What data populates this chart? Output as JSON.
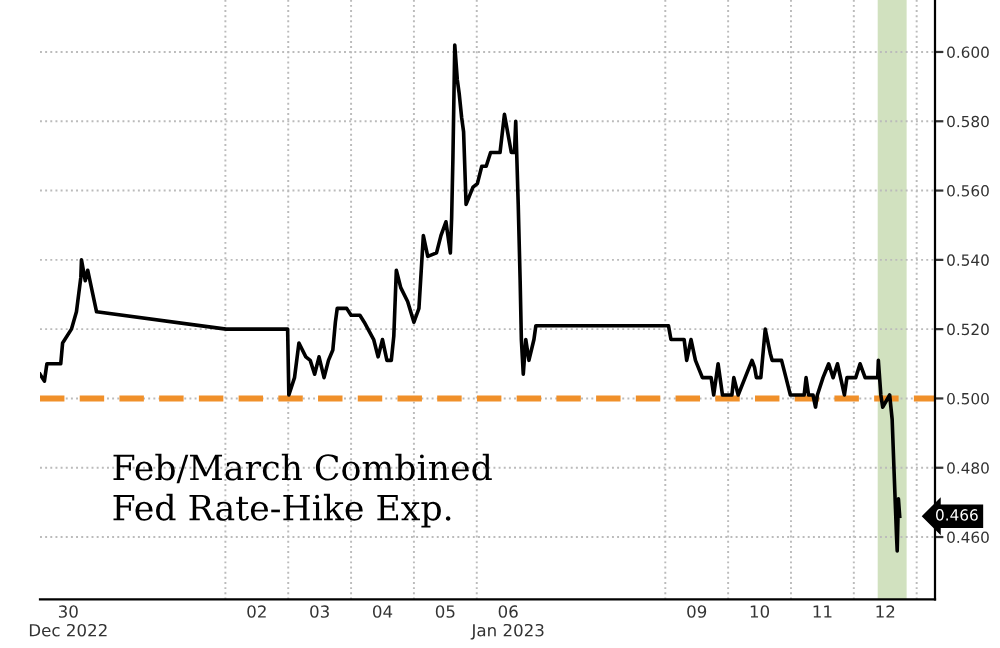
{
  "chart_data": {
    "type": "line",
    "annotations": [
      "Feb/March Combined\nFed Rate-Hike Exp.",
      "0.466"
    ],
    "xlim": [
      "2022-12-30T01:12",
      "2023-01-13T07:00"
    ],
    "xticks": [
      {
        "value": "2022-12-30T12:00",
        "label": "30\nDec 2022"
      },
      {
        "value": "2023-01-02T12:00",
        "label": "02"
      },
      {
        "value": "2023-01-03T12:00",
        "label": "03"
      },
      {
        "value": "2023-01-04T12:00",
        "label": "04"
      },
      {
        "value": "2023-01-05T12:00",
        "label": "05"
      },
      {
        "value": "2023-01-06T12:00",
        "label": "06\nJan 2023"
      },
      {
        "value": "2023-01-09T12:00",
        "label": "09"
      },
      {
        "value": "2023-01-10T12:00",
        "label": "10"
      },
      {
        "value": "2023-01-11T12:00",
        "label": "11"
      },
      {
        "value": "2023-01-12T12:00",
        "label": "12"
      },
      {
        "value": "2023-01-02",
        "label": null
      },
      {
        "value": "2023-01-03",
        "label": null
      },
      {
        "value": "2023-01-04",
        "label": null
      },
      {
        "value": "2023-01-05",
        "label": null
      },
      {
        "value": "2023-01-06",
        "label": null
      },
      {
        "value": "2023-01-09",
        "label": null
      },
      {
        "value": "2023-01-10",
        "label": null
      },
      {
        "value": "2023-01-11",
        "label": null
      },
      {
        "value": "2023-01-12",
        "label": null
      },
      {
        "value": "2023-01-13",
        "label": null
      }
    ],
    "ylim": [
      0.442,
      0.615
    ],
    "yticks": [
      {
        "value": 0.46,
        "label": "0.460"
      },
      {
        "value": 0.48,
        "label": "0.480"
      },
      {
        "value": 0.5,
        "label": "0.500"
      },
      {
        "value": 0.52,
        "label": "0.520"
      },
      {
        "value": 0.54,
        "label": "0.540"
      },
      {
        "value": 0.56,
        "label": "0.560"
      },
      {
        "value": 0.58,
        "label": "0.580"
      },
      {
        "value": 0.6,
        "label": "0.600"
      }
    ],
    "grid": true,
    "ref_lines": [
      {
        "axis": "y",
        "value": 0.5,
        "color": "#f0902a",
        "line_style": "dashed"
      }
    ],
    "bands": [
      {
        "axis": "x",
        "from": "2023-01-12T09:07",
        "to": "2023-01-12T20:10",
        "color": "#c9dcb4"
      }
    ],
    "series": [
      {
        "color": "#000000",
        "x": [
          "2022-12-30T01:12",
          "2022-12-30T02:53",
          "2022-12-30T03:50",
          "2022-12-30T09:07",
          "2022-12-30T09:50",
          "2022-12-30T13:12",
          "2022-12-30T15:07",
          "2022-12-30T16:48",
          "2022-12-30T17:02",
          "2022-12-30T18:29",
          "2022-12-30T19:26",
          "2022-12-30T21:07",
          "2022-12-30T22:48",
          "2023-01-02T00:14",
          "2023-01-02T23:46",
          "2023-01-03T00:14",
          "2023-01-03T02:24",
          "2023-01-03T04:05",
          "2023-01-03T06:43",
          "2023-01-03T08:24",
          "2023-01-03T10:05",
          "2023-01-03T11:46",
          "2023-01-03T13:41",
          "2023-01-03T15:22",
          "2023-01-03T17:02",
          "2023-01-03T18:00",
          "2023-01-03T18:43",
          "2023-01-03T22:19",
          "2023-01-04T00:00",
          "2023-01-04T03:22",
          "2023-01-04T05:02",
          "2023-01-04T08:38",
          "2023-01-04T10:19",
          "2023-01-04T12:00",
          "2023-01-04T13:41",
          "2023-01-04T15:22",
          "2023-01-04T16:19",
          "2023-01-04T17:17",
          "2023-01-04T18:58",
          "2023-01-04T21:36",
          "2023-01-05T00:00",
          "2023-01-05T01:55",
          "2023-01-05T03:36",
          "2023-01-05T05:17",
          "2023-01-05T08:38",
          "2023-01-05T10:19",
          "2023-01-05T12:14",
          "2023-01-05T13:55",
          "2023-01-05T14:24",
          "2023-01-05T14:53",
          "2023-01-05T15:36",
          "2023-01-05T16:34",
          "2023-01-05T17:17",
          "2023-01-05T18:14",
          "2023-01-05T18:58",
          "2023-01-05T19:55",
          "2023-01-05T22:34",
          "2023-01-06T00:14",
          "2023-01-06T01:55",
          "2023-01-06T03:36",
          "2023-01-06T05:17",
          "2023-01-06T08:53",
          "2023-01-06T10:34",
          "2023-01-06T13:12",
          "2023-01-06T14:24",
          "2023-01-06T14:53",
          "2023-01-06T15:50",
          "2023-01-06T16:34",
          "2023-01-06T17:02",
          "2023-01-06T17:46",
          "2023-01-06T18:43",
          "2023-01-06T19:55",
          "2023-01-06T21:50",
          "2023-01-06T22:34",
          "2023-01-09T01:12",
          "2023-01-09T02:10",
          "2023-01-09T07:12",
          "2023-01-09T08:10",
          "2023-01-09T09:50",
          "2023-01-09T11:31",
          "2023-01-09T14:10",
          "2023-01-09T17:31",
          "2023-01-09T18:29",
          "2023-01-09T20:10",
          "2023-01-09T21:50",
          "2023-01-10T01:26",
          "2023-01-10T02:10",
          "2023-01-10T03:50",
          "2023-01-10T06:29",
          "2023-01-10T09:07",
          "2023-01-10T10:05",
          "2023-01-10T10:48",
          "2023-01-10T12:29",
          "2023-01-10T14:10",
          "2023-01-10T16:05",
          "2023-01-10T16:48",
          "2023-01-10T20:24",
          "2023-01-10T22:05",
          "2023-01-10T23:46",
          "2023-01-11T05:02",
          "2023-01-11T05:46",
          "2023-01-11T06:43",
          "2023-01-11T08:24",
          "2023-01-11T09:22",
          "2023-01-11T10:05",
          "2023-01-11T12:14",
          "2023-01-11T14:24",
          "2023-01-11T16:05",
          "2023-01-11T17:46",
          "2023-01-11T20:24",
          "2023-01-11T21:22",
          "2023-01-12T00:43",
          "2023-01-12T02:24",
          "2023-01-12T04:19",
          "2023-01-12T09:07",
          "2023-01-12T09:22",
          "2023-01-12T10:19",
          "2023-01-12T11:02",
          "2023-01-12T13:41",
          "2023-01-12T14:38",
          "2023-01-12T15:22",
          "2023-01-12T16:19",
          "2023-01-12T16:34",
          "2023-01-12T17:02",
          "2023-01-12T17:31"
        ],
        "values": [
          0.507,
          0.505,
          0.51,
          0.51,
          0.516,
          0.52,
          0.525,
          0.535,
          0.54,
          0.534,
          0.537,
          0.531,
          0.525,
          0.52,
          0.52,
          0.501,
          0.506,
          0.516,
          0.512,
          0.511,
          0.507,
          0.512,
          0.506,
          0.511,
          0.514,
          0.522,
          0.526,
          0.526,
          0.524,
          0.524,
          0.522,
          0.517,
          0.512,
          0.517,
          0.511,
          0.511,
          0.518,
          0.537,
          0.532,
          0.528,
          0.522,
          0.526,
          0.547,
          0.541,
          0.542,
          0.547,
          0.551,
          0.542,
          0.552,
          0.569,
          0.602,
          0.592,
          0.588,
          0.581,
          0.577,
          0.556,
          0.561,
          0.562,
          0.567,
          0.567,
          0.571,
          0.571,
          0.582,
          0.571,
          0.571,
          0.58,
          0.556,
          0.534,
          0.517,
          0.507,
          0.517,
          0.511,
          0.517,
          0.521,
          0.521,
          0.517,
          0.517,
          0.511,
          0.517,
          0.511,
          0.506,
          0.506,
          0.501,
          0.51,
          0.501,
          0.501,
          0.506,
          0.501,
          0.506,
          0.511,
          0.509,
          0.506,
          0.506,
          0.52,
          0.513,
          0.511,
          0.511,
          0.506,
          0.501,
          0.501,
          0.506,
          0.501,
          0.501,
          0.4975,
          0.501,
          0.506,
          0.51,
          0.506,
          0.51,
          0.501,
          0.506,
          0.506,
          0.51,
          0.506,
          0.506,
          0.511,
          0.501,
          0.4975,
          0.501,
          0.494,
          0.479,
          0.46,
          0.456,
          0.471,
          0.466
        ]
      }
    ]
  }
}
